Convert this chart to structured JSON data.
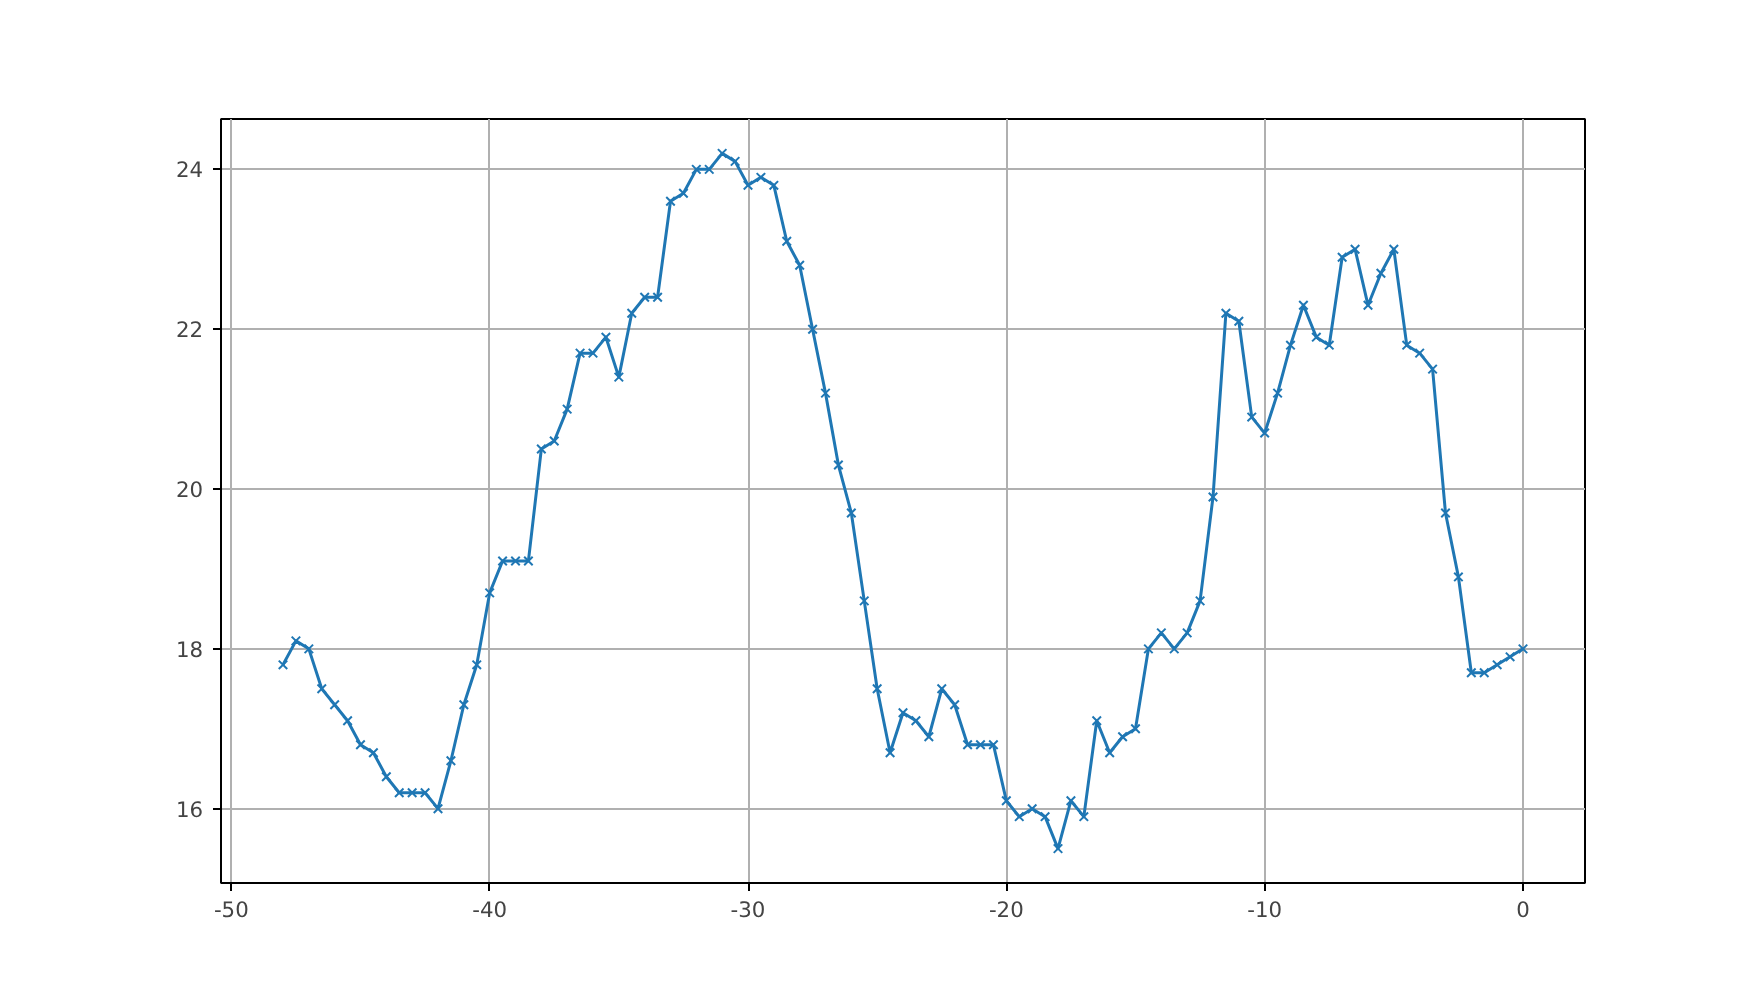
{
  "chart_data": {
    "type": "line",
    "marker": "cross",
    "grid": true,
    "x": [
      -48,
      -47.5,
      -47,
      -46.5,
      -46,
      -45.5,
      -45,
      -44.5,
      -44,
      -43.5,
      -43,
      -42.5,
      -42,
      -41.5,
      -41,
      -40.5,
      -40,
      -39.5,
      -39,
      -38.5,
      -38,
      -37.5,
      -37,
      -36.5,
      -36,
      -35.5,
      -35,
      -34.5,
      -34,
      -33.5,
      -33,
      -32.5,
      -32,
      -31.5,
      -31,
      -30.5,
      -30,
      -29.5,
      -29,
      -28.5,
      -28,
      -27.5,
      -27,
      -26.5,
      -26,
      -25.5,
      -25,
      -24.5,
      -24,
      -23.5,
      -23,
      -22.5,
      -22,
      -21.5,
      -21,
      -20.5,
      -20,
      -19.5,
      -19,
      -18.5,
      -18,
      -17.5,
      -17,
      -16.5,
      -16,
      -15.5,
      -15,
      -14.5,
      -14,
      -13.5,
      -13,
      -12.5,
      -12,
      -11.5,
      -11,
      -10.5,
      -10,
      -9.5,
      -9,
      -8.5,
      -8,
      -7.5,
      -7,
      -6.5,
      -6,
      -5.5,
      -5,
      -4.5,
      -4,
      -3.5,
      -3,
      -2.5,
      -2,
      -1.5,
      -1,
      -0.5,
      0
    ],
    "series": [
      {
        "color": "#1f77b4",
        "values": [
          17.8,
          18.1,
          18.0,
          17.5,
          17.3,
          17.1,
          16.8,
          16.7,
          16.4,
          16.2,
          16.2,
          16.2,
          16.0,
          16.6,
          17.3,
          17.8,
          18.7,
          19.1,
          19.1,
          19.1,
          20.5,
          20.6,
          21.0,
          21.7,
          21.7,
          21.9,
          21.4,
          22.2,
          22.4,
          22.4,
          23.6,
          23.7,
          24.0,
          24.0,
          24.2,
          24.1,
          23.8,
          23.9,
          23.8,
          23.1,
          22.8,
          22.0,
          21.2,
          20.3,
          19.7,
          18.6,
          17.5,
          16.7,
          17.2,
          17.1,
          16.9,
          17.5,
          17.3,
          16.8,
          16.8,
          16.8,
          16.1,
          15.9,
          16.0,
          15.9,
          15.5,
          16.1,
          15.9,
          17.1,
          16.7,
          16.9,
          17.0,
          18.0,
          18.2,
          18.0,
          18.2,
          18.6,
          19.9,
          22.2,
          22.1,
          20.9,
          20.7,
          21.2,
          21.8,
          22.3,
          21.9,
          21.8,
          22.9,
          23.0,
          22.3,
          22.7,
          23.0,
          21.8,
          21.7,
          21.5,
          19.7,
          18.9,
          17.7,
          17.7,
          17.8,
          17.9,
          18.0
        ]
      }
    ],
    "xlim": [
      -50.4,
      2.4
    ],
    "ylim": [
      15.07,
      24.63
    ],
    "xticks": [
      -50,
      -40,
      -30,
      -20,
      -10,
      0
    ],
    "yticks": [
      16,
      18,
      20,
      22,
      24
    ]
  }
}
